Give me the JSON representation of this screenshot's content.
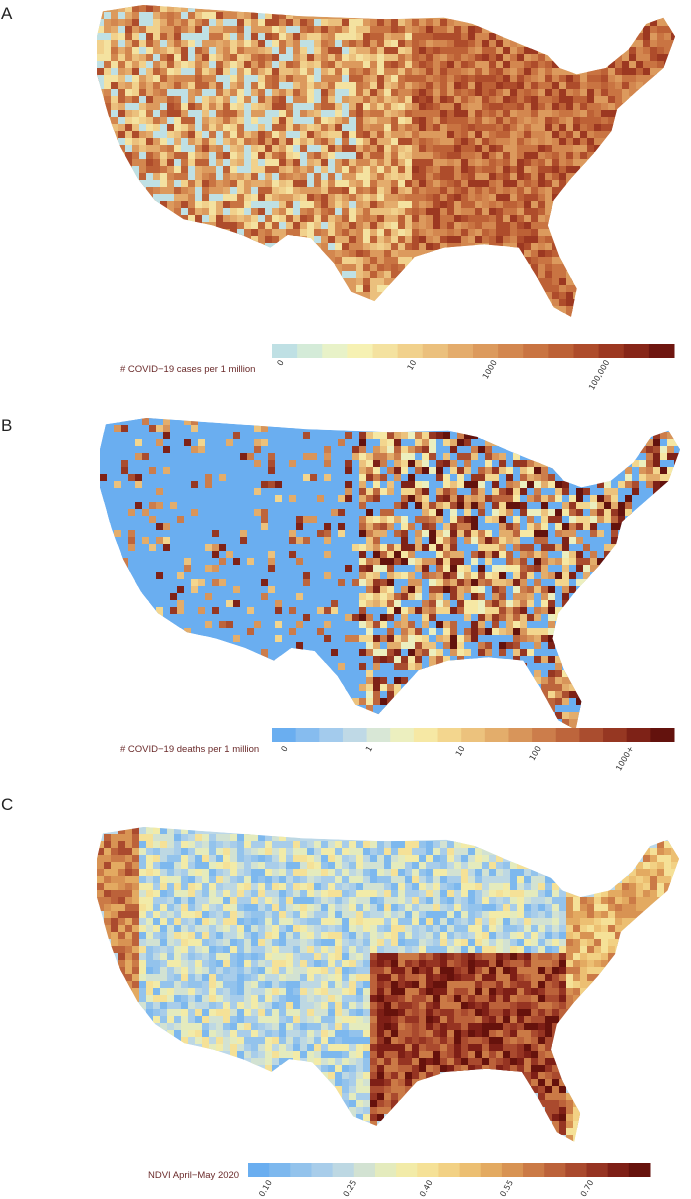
{
  "panels": [
    {
      "letter": "A",
      "legend_title": "# COVID−19 cases per 1 million",
      "tick_labels": [
        "0",
        "10",
        "1000",
        "100,000"
      ],
      "palette": [
        "#bfe0e4",
        "#d4ebd8",
        "#e8f2c8",
        "#f6f1b3",
        "#f4e2a0",
        "#f1d18c",
        "#ebc07d",
        "#e4ac6c",
        "#dc9a5d",
        "#d3874f",
        "#c97442",
        "#bd6136",
        "#ae4c2b",
        "#9c3821",
        "#872618",
        "#6e1610"
      ],
      "colors": {
        "background": "#bfe0e4",
        "base": "#d99a5c",
        "light": "#f0d38c",
        "dark": "#b55a2e",
        "darkest": "#8a2a1a"
      }
    },
    {
      "letter": "B",
      "legend_title": "# COVID−19 deaths per 1 million",
      "tick_labels": [
        "0",
        "1",
        "10",
        "100",
        "1000+"
      ],
      "palette": [
        "#6aaef0",
        "#86bcef",
        "#a3cbed",
        "#bfd9e6",
        "#d8e7d6",
        "#ecefbf",
        "#f6e8a4",
        "#f3d68e",
        "#ecc27d",
        "#e3ad6b",
        "#d8955a",
        "#cc7d4b",
        "#bd653c",
        "#aa4d2f",
        "#963722",
        "#7e2217",
        "#63120d"
      ],
      "colors": {
        "background": "#6aaef0",
        "base": "#6aaef0",
        "light": "#efcd86",
        "dark": "#c0693a",
        "darkest": "#7a1e12"
      }
    },
    {
      "letter": "C",
      "legend_title": "NDVI April−May 2020",
      "tick_labels": [
        "0.10",
        "0.25",
        "0.40",
        "0.55",
        "0.70"
      ],
      "palette": [
        "#6aaef0",
        "#7db8ee",
        "#93c3ec",
        "#a8cdea",
        "#bdd8e3",
        "#d2e2d2",
        "#e4ebbd",
        "#f2eba8",
        "#f5e197",
        "#f2d184",
        "#ecbf72",
        "#e3aa61",
        "#d89353",
        "#cb7a46",
        "#bc623a",
        "#aa4a2e",
        "#963422",
        "#7e1f16",
        "#66120c"
      ],
      "colors": {
        "background": "#c7dde3",
        "base": "#bcd8e8",
        "light": "#eee8a5",
        "dark": "#a24a24",
        "darkest": "#7b2a14"
      }
    }
  ]
}
